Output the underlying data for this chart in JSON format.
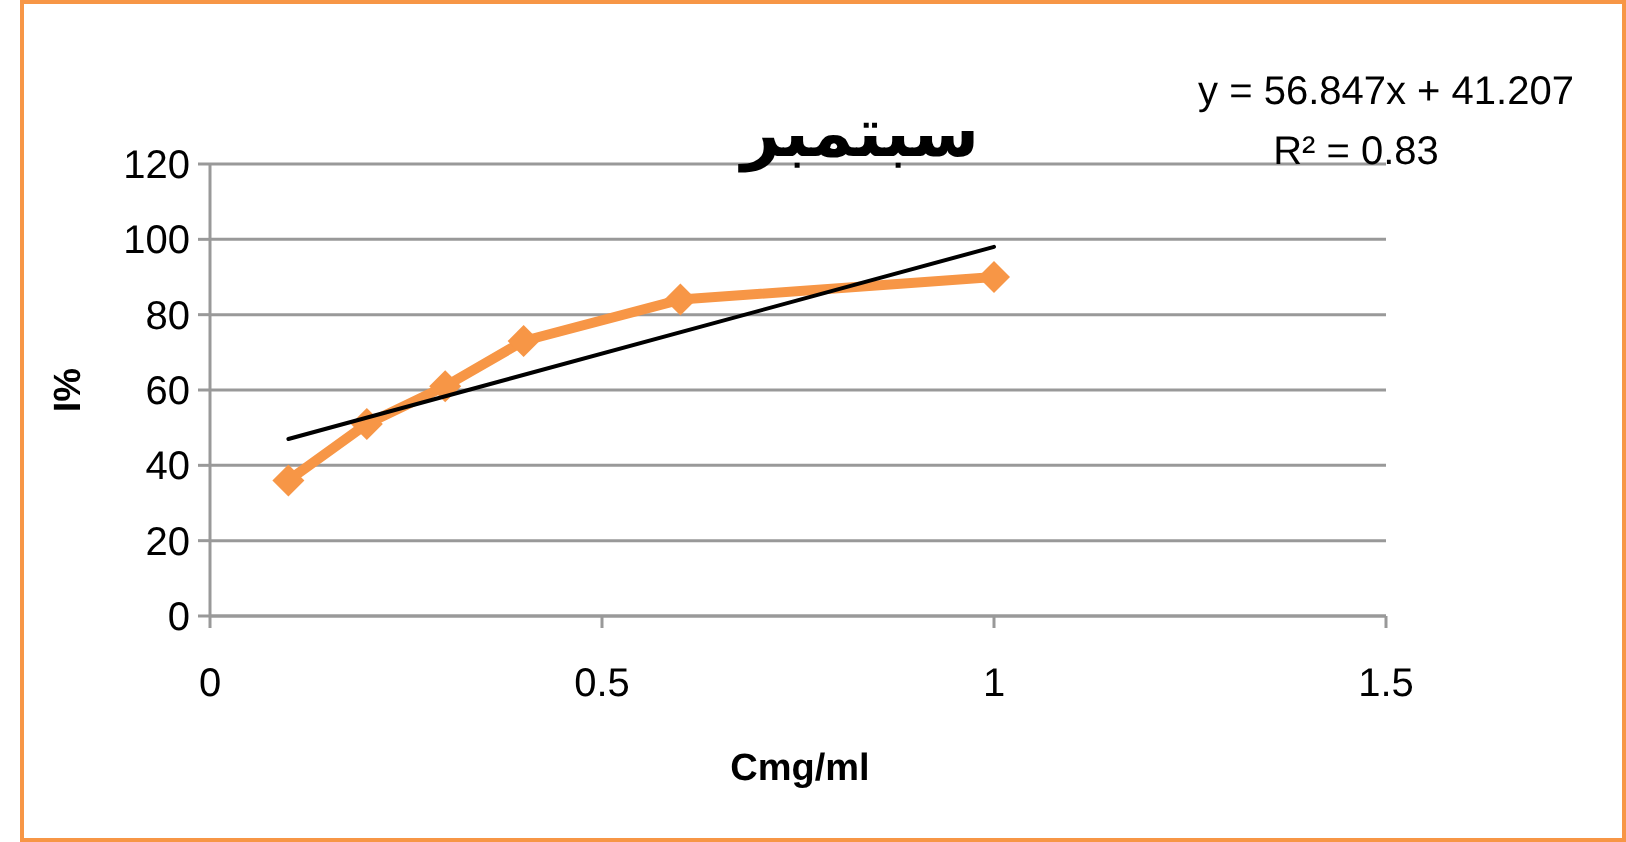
{
  "chart_data": {
    "type": "line",
    "title": "سبتمبر",
    "xlabel": "Cmg/ml",
    "ylabel": "I%",
    "annotations": [
      "y = 56.847x + 41.207",
      "R² = 0.83"
    ],
    "x": [
      0.1,
      0.2,
      0.3,
      0.4,
      0.6,
      1
    ],
    "series": [
      {
        "color": "#f79646",
        "values": [
          36,
          51,
          61,
          73,
          84,
          90
        ],
        "marker": "diamond"
      },
      {
        "color": "#000000",
        "x": [
          0.1,
          1
        ],
        "values": [
          47,
          98
        ],
        "marker": "none"
      }
    ],
    "xlim": [
      0,
      1.5
    ],
    "xticks": [
      0,
      0.5,
      1,
      1.5
    ],
    "ylim": [
      0,
      120
    ],
    "yticks": [
      0,
      20,
      40,
      60,
      80,
      100,
      120
    ],
    "grid": "y"
  }
}
